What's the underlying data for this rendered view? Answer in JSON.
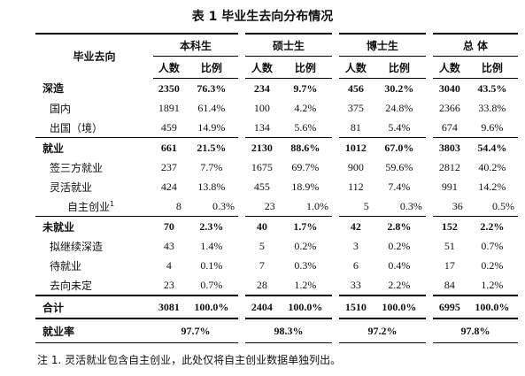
{
  "title": "表 1 毕业生去向分布情况",
  "table": {
    "corner": "毕业去向",
    "groups": [
      "本科生",
      "硕士生",
      "博士生",
      "总 体"
    ],
    "subheaders": [
      "人数",
      "比例",
      "人数",
      "比例",
      "人数",
      "比例",
      "人数",
      "比例"
    ],
    "sections": [
      {
        "label": "深造",
        "cells": [
          2350,
          "76.3%",
          234,
          "9.7%",
          456,
          "30.2%",
          3040,
          "43.5%"
        ],
        "items": [
          {
            "label": "国内",
            "cells": [
              1891,
              "61.4%",
              100,
              "4.2%",
              375,
              "24.8%",
              2366,
              "33.8%"
            ]
          },
          {
            "label": "出国（境）",
            "cells": [
              459,
              "14.9%",
              134,
              "5.6%",
              81,
              "5.4%",
              674,
              "9.6%"
            ]
          }
        ]
      },
      {
        "label": "就业",
        "cells": [
          661,
          "21.5%",
          2130,
          "88.6%",
          1012,
          "67.0%",
          3803,
          "54.4%"
        ],
        "items": [
          {
            "label": "签三方就业",
            "cells": [
              237,
              "7.7%",
              1675,
              "69.7%",
              900,
              "59.6%",
              2812,
              "40.2%"
            ]
          },
          {
            "label": "灵活就业",
            "cells": [
              424,
              "13.8%",
              455,
              "18.9%",
              112,
              "7.4%",
              991,
              "14.2%"
            ],
            "items": [
              {
                "label": "自主创业",
                "footnote": "1",
                "cells": [
                  8,
                  "0.3%",
                  23,
                  "1.0%",
                  5,
                  "0.3%",
                  36,
                  "0.5%"
                ]
              }
            ]
          }
        ]
      },
      {
        "label": "未就业",
        "cells": [
          70,
          "2.3%",
          40,
          "1.7%",
          42,
          "2.8%",
          152,
          "2.2%"
        ],
        "items": [
          {
            "label": "拟继续深造",
            "cells": [
              43,
              "1.4%",
              5,
              "0.2%",
              3,
              "0.2%",
              51,
              "0.7%"
            ]
          },
          {
            "label": "待就业",
            "cells": [
              4,
              "0.1%",
              7,
              "0.3%",
              6,
              "0.4%",
              17,
              "0.2%"
            ]
          },
          {
            "label": "去向未定",
            "cells": [
              23,
              "0.7%",
              28,
              "1.2%",
              33,
              "2.2%",
              84,
              "1.2%"
            ]
          }
        ]
      }
    ],
    "total": {
      "label": "合计",
      "cells": [
        3081,
        "100.0%",
        2404,
        "100.0%",
        1510,
        "100.0%",
        6995,
        "100.0%"
      ]
    },
    "rate": {
      "label": "就业率",
      "cells": [
        "97.7%",
        "98.3%",
        "97.2%",
        "97.8%"
      ]
    }
  },
  "note": "注 1. 灵活就业包含自主创业，此处仅将自主创业数据单独列出。"
}
